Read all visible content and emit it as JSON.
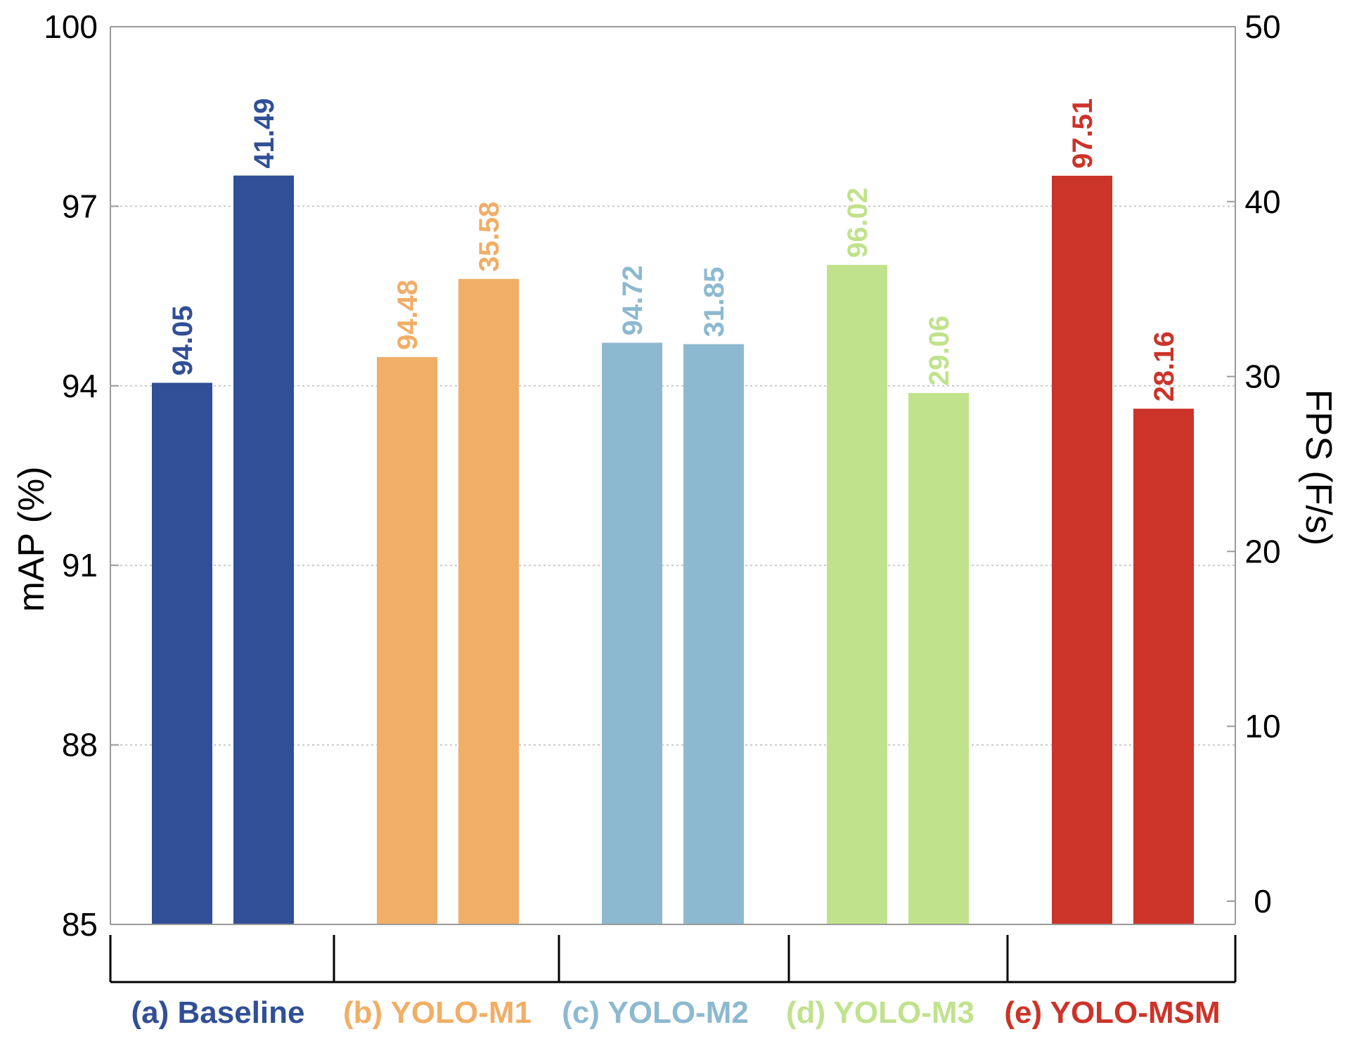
{
  "chart_data": {
    "type": "bar",
    "groups": [
      {
        "label": "(a) Baseline",
        "color": "#304f96",
        "map": 94.05,
        "fps": 41.49,
        "map_label": "94.05",
        "fps_label": "41.49"
      },
      {
        "label": "(b) YOLO-M1",
        "color": "#f0ae66",
        "map": 94.48,
        "fps": 35.58,
        "map_label": "94.48",
        "fps_label": "35.58"
      },
      {
        "label": "(c) YOLO-M2",
        "color": "#8db9d0",
        "map": 94.72,
        "fps": 31.85,
        "map_label": "94.72",
        "fps_label": "31.85"
      },
      {
        "label": "(d) YOLO-M3",
        "color": "#c0e28c",
        "map": 96.02,
        "fps": 29.06,
        "map_label": "96.02",
        "fps_label": "29.06"
      },
      {
        "label": "(e) YOLO-MSM",
        "color": "#cc3329",
        "map": 97.51,
        "fps": 28.16,
        "map_label": "97.51",
        "fps_label": "28.16"
      }
    ],
    "left_axis": {
      "label": "mAP (%)",
      "ticks": [
        85,
        88,
        91,
        94,
        97,
        100
      ],
      "range": [
        85,
        100
      ]
    },
    "right_axis": {
      "label": "FPS (F/s)",
      "ticks": [
        0,
        10,
        20,
        30,
        40,
        50
      ],
      "range": [
        0,
        50
      ]
    },
    "grid": true,
    "grid_style": "dotted-horizontal"
  }
}
